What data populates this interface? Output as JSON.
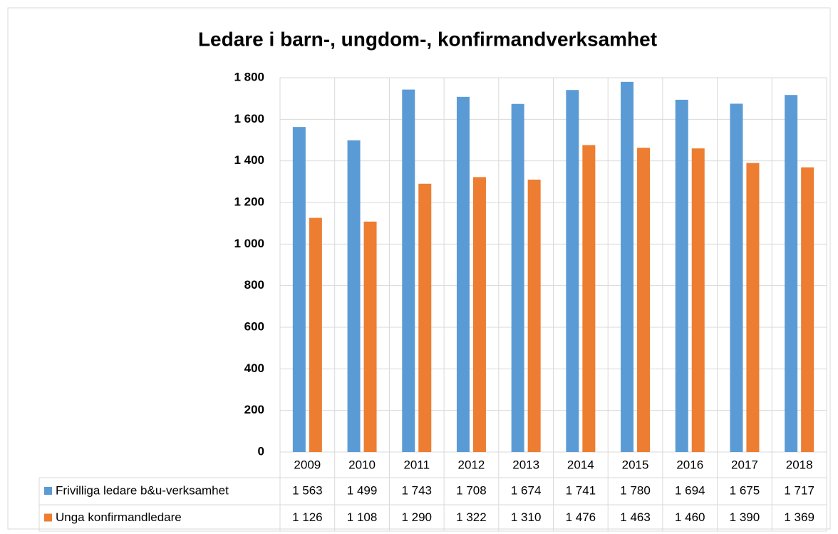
{
  "chart_data": {
    "type": "bar",
    "title": "Ledare i barn-, ungdom-, konfirmandverksamhet",
    "categories": [
      "2009",
      "2010",
      "2011",
      "2012",
      "2013",
      "2014",
      "2015",
      "2016",
      "2017",
      "2018"
    ],
    "series": [
      {
        "name": "Frivilliga ledare b&u-verksamhet",
        "color": "#5b9bd5",
        "values": [
          1563,
          1499,
          1743,
          1708,
          1674,
          1741,
          1780,
          1694,
          1675,
          1717
        ],
        "value_labels": [
          "1 563",
          "1 499",
          "1 743",
          "1 708",
          "1 674",
          "1 741",
          "1 780",
          "1 694",
          "1 675",
          "1 717"
        ]
      },
      {
        "name": "Unga konfirmandledare",
        "color": "#ed7d31",
        "values": [
          1126,
          1108,
          1290,
          1322,
          1310,
          1476,
          1463,
          1460,
          1390,
          1369
        ],
        "value_labels": [
          "1 126",
          "1 108",
          "1 290",
          "1 322",
          "1 310",
          "1 476",
          "1 463",
          "1 460",
          "1 390",
          "1 369"
        ]
      }
    ],
    "ylim": [
      0,
      1800
    ],
    "yticks": [
      0,
      200,
      400,
      600,
      800,
      {
        "value": 1000,
        "label": "1 000"
      },
      {
        "value": 1200,
        "label": "1 200"
      },
      {
        "value": 1400,
        "label": "1 400"
      },
      {
        "value": 1600,
        "label": "1 600"
      },
      {
        "value": 1800,
        "label": "1 800"
      }
    ],
    "grid": true
  }
}
